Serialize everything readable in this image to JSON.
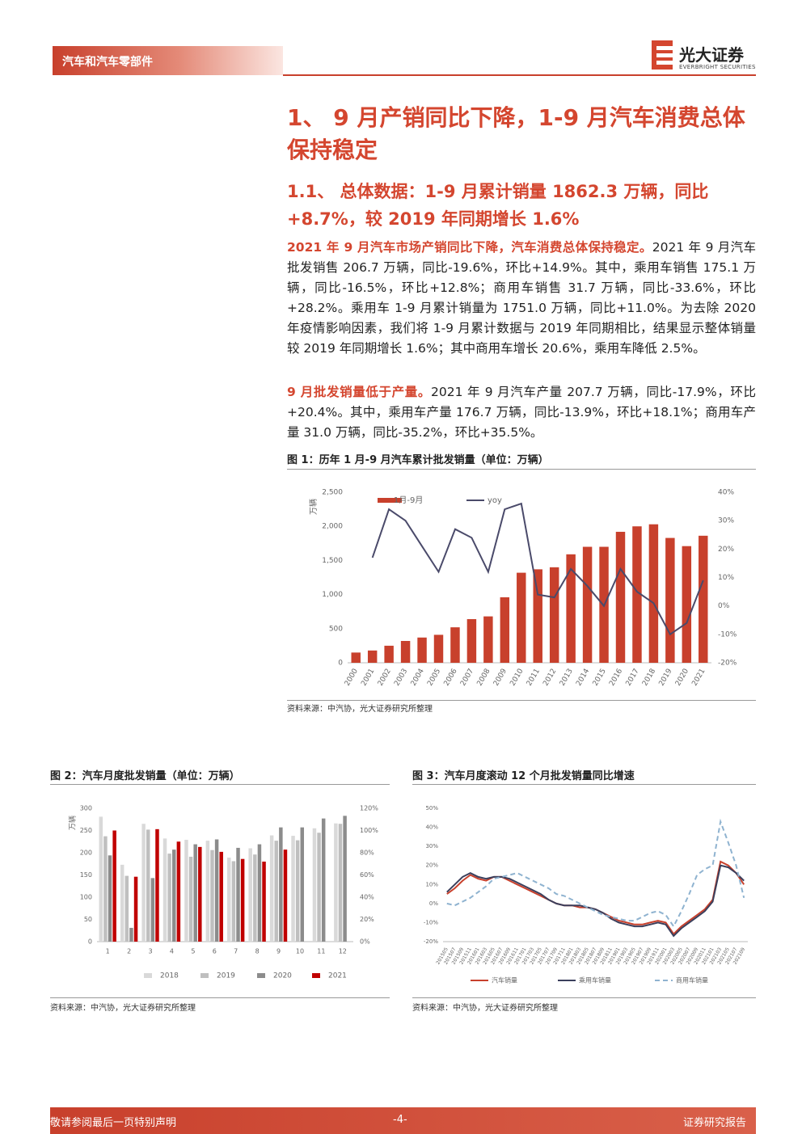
{
  "header": {
    "section": "汽车和汽车零部件",
    "brand": "光大证券",
    "brand_en": "EVERBRIGHT SECURITIES"
  },
  "headings": {
    "h1": "1、 9 月产销同比下降，1-9 月汽车消费总体保持稳定",
    "h2": "1.1、 总体数据：1-9 月累计销量 1862.3 万辆，同比+8.7%，较 2019 年同期增长 1.6%"
  },
  "paragraphs": [
    {
      "lead": "2021 年 9 月汽车市场产销同比下降，汽车消费总体保持稳定。",
      "text": "2021 年 9 月汽车批发销售 206.7 万辆，同比-19.6%，环比+14.9%。其中，乘用车销售 175.1 万辆，同比-16.5%，环比+12.8%；商用车销售 31.7 万辆，同比-33.6%，环比+28.2%。乘用车 1-9 月累计销量为 1751.0 万辆，同比+11.0%。为去除 2020 年疫情影响因素，我们将 1-9 月累计数据与 2019 年同期相比，结果显示整体销量较 2019 年同期增长 1.6%；其中商用车增长 20.6%，乘用车降低 2.5%。"
    },
    {
      "lead": "9 月批发销量低于产量。",
      "text": "2021 年 9 月汽车产量 207.7 万辆，同比-17.9%，环比+20.4%。其中，乘用车产量 176.7 万辆，同比-13.9%，环比+18.1%；商用车产量 31.0 万辆，同比-35.2%，环比+35.5%。"
    }
  ],
  "figures": [
    {
      "caption": "图 1：历年 1 月-9 月汽车累计批发销量（单位：万辆）",
      "source": "资料来源：中汽协，光大证券研究所整理",
      "chart": {
        "type": "bar",
        "ylabel": "万辆",
        "categories": [
          "2000",
          "2001",
          "2002",
          "2003",
          "2004",
          "2005",
          "2006",
          "2007",
          "2008",
          "2009",
          "2010",
          "2011",
          "2012",
          "2013",
          "2014",
          "2015",
          "2016",
          "2017",
          "2018",
          "2019",
          "2020",
          "2021"
        ],
        "series": [
          {
            "name": "1月-9月",
            "color": "#c8402c",
            "values": [
              150,
              180,
              250,
              320,
              370,
              410,
              520,
              640,
              680,
              960,
              1320,
              1370,
              1400,
              1590,
              1700,
              1700,
              1920,
              2000,
              2030,
              1830,
              1710,
              1862.3
            ]
          },
          {
            "name": "yoy",
            "type": "line",
            "axis": "y2",
            "color": "#4a4a6a",
            "values": [
              null,
              17,
              34,
              30,
              21,
              12,
              27,
              24,
              12,
              34,
              36,
              4,
              3,
              13,
              7,
              0,
              13,
              5,
              1,
              -10,
              -6,
              9
            ]
          }
        ],
        "ylim": [
          0,
          2500
        ],
        "yticks": [
          0,
          500,
          {
            "value": 1000,
            "label": "1,000"
          },
          {
            "value": 1500,
            "label": "1,500"
          },
          {
            "value": 2000,
            "label": "2,000"
          },
          {
            "value": 2500,
            "label": "2,500"
          }
        ],
        "y2lim": [
          -20,
          40
        ],
        "y2ticks": [
          {
            "value": -20,
            "label": "-20%"
          },
          {
            "value": -10,
            "label": "-10%"
          },
          {
            "value": 0,
            "label": "0%"
          },
          {
            "value": 10,
            "label": "10%"
          },
          {
            "value": 20,
            "label": "20%"
          },
          {
            "value": 30,
            "label": "30%"
          },
          {
            "value": 40,
            "label": "40%"
          }
        ],
        "grid": false
      }
    },
    {
      "caption": "图 2：汽车月度批发销量（单位：万辆）",
      "source": "资料来源：中汽协，光大证券研究所整理",
      "chart": {
        "type": "bar",
        "ylabel": "万辆",
        "categories": [
          "1",
          "2",
          "3",
          "4",
          "5",
          "6",
          "7",
          "8",
          "9",
          "10",
          "11",
          "12"
        ],
        "series": [
          {
            "name": "2018",
            "color": "#d9d9d9",
            "values": [
              281,
              173,
              265,
              232,
              229,
              227,
              189,
              210,
              239,
              238,
              255,
              266
            ]
          },
          {
            "name": "2019",
            "color": "#bfbfbf",
            "values": [
              237,
              148,
              252,
              198,
              191,
              206,
              181,
              196,
              227,
              228,
              245,
              265
            ]
          },
          {
            "name": "2020",
            "color": "#8c8c8c",
            "values": [
              194,
              31,
              143,
              207,
              219,
              230,
              211,
              219,
              257,
              257,
              277,
              283
            ]
          },
          {
            "name": "2021",
            "color": "#c00000",
            "values": [
              250,
              146,
              253,
              225,
              213,
              202,
              186,
              180,
              207,
              null,
              null,
              null
            ]
          }
        ],
        "ylim": [
          0,
          300
        ],
        "yticks": [
          0,
          50,
          100,
          150,
          200,
          250,
          300
        ],
        "y2lim": [
          0,
          120
        ],
        "y2ticks": [
          {
            "value": 0,
            "label": "0%"
          },
          {
            "value": 20,
            "label": "20%"
          },
          {
            "value": 40,
            "label": "40%"
          },
          {
            "value": 60,
            "label": "60%"
          },
          {
            "value": 80,
            "label": "80%"
          },
          {
            "value": 100,
            "label": "100%"
          },
          {
            "value": 120,
            "label": "120%"
          }
        ],
        "grid": false
      }
    },
    {
      "caption": "图 3：汽车月度滚动 12 个月批发销量同比增速",
      "source": "资料来源：中汽协，光大证券研究所整理",
      "chart": {
        "type": "line",
        "categories": [
          "201505",
          "201507",
          "201509",
          "201511",
          "201601",
          "201603",
          "201605",
          "201607",
          "201609",
          "201611",
          "201701",
          "201703",
          "201705",
          "201707",
          "201709",
          "201711",
          "201801",
          "201803",
          "201805",
          "201807",
          "201809",
          "201811",
          "201901",
          "201903",
          "201905",
          "201907",
          "201909",
          "201911",
          "202001",
          "202003",
          "202005",
          "202007",
          "202009",
          "202011",
          "202101",
          "202103",
          "202105",
          "202107",
          "202109"
        ],
        "series": [
          {
            "name": "汽车销量",
            "color": "#c8402c",
            "values": [
              5,
              8,
              12,
              15,
              13,
              12,
              14,
              14,
              12,
              10,
              8,
              6,
              4,
              2,
              0,
              -1,
              -1,
              -2,
              -2,
              -3,
              -5,
              -7,
              -9,
              -10,
              -11,
              -11,
              -10,
              -9,
              -10,
              -16,
              -12,
              -9,
              -6,
              -3,
              2,
              22,
              20,
              16,
              10
            ]
          },
          {
            "name": "乘用车销量",
            "color": "#3b3f5c",
            "values": [
              6,
              10,
              14,
              16,
              14,
              13,
              14,
              14,
              13,
              11,
              9,
              7,
              5,
              2,
              0,
              -1,
              -1,
              -1,
              -2,
              -3,
              -5,
              -8,
              -10,
              -11,
              -12,
              -12,
              -11,
              -10,
              -11,
              -17,
              -13,
              -10,
              -7,
              -4,
              1,
              20,
              19,
              16,
              12
            ]
          },
          {
            "name": "商用车销量",
            "color": "#8fb3d0",
            "dash": true,
            "values": [
              0,
              -1,
              1,
              3,
              6,
              9,
              13,
              14,
              15,
              16,
              14,
              12,
              10,
              8,
              5,
              4,
              2,
              0,
              -2,
              -4,
              -6,
              -7,
              -8,
              -9,
              -9,
              -7,
              -5,
              -4,
              -6,
              -12,
              -4,
              5,
              15,
              18,
              20,
              43,
              32,
              20,
              3
            ]
          }
        ],
        "ylim": [
          -20,
          50
        ],
        "yticks": [
          {
            "value": -20,
            "label": "-20%"
          },
          {
            "value": -10,
            "label": "-10%"
          },
          {
            "value": 0,
            "label": "0%"
          },
          {
            "value": 10,
            "label": "10%"
          },
          {
            "value": 20,
            "label": "20%"
          },
          {
            "value": 30,
            "label": "30%"
          },
          {
            "value": 40,
            "label": "40%"
          },
          {
            "value": 50,
            "label": "50%"
          }
        ],
        "grid": false
      }
    }
  ],
  "footer": {
    "left": "敬请参阅最后一页特别声明",
    "page": "-4-",
    "right": "证券研究报告"
  }
}
